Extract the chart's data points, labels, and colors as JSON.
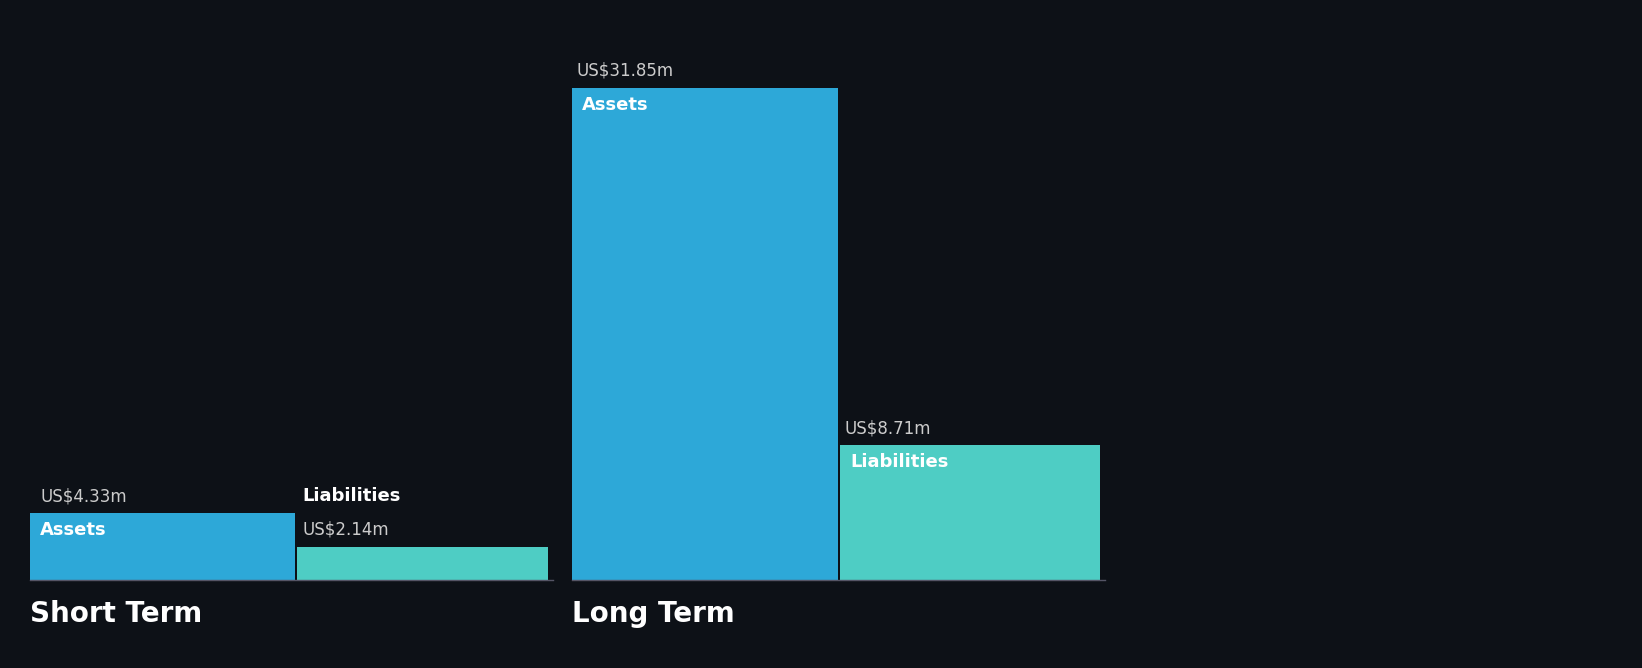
{
  "background_color": "#0d1117",
  "sections": [
    "Short Term",
    "Long Term"
  ],
  "assets": [
    4.33,
    31.85
  ],
  "liabilities": [
    2.14,
    8.71
  ],
  "asset_color": "#2da8d8",
  "liability_color": "#4ecdc4",
  "text_color": "#ffffff",
  "label_inside_color": "#ffffff",
  "liability_label_dark_color": "#1a2a3a",
  "value_label_color": "#cccccc",
  "section_title_fontsize": 20,
  "bar_label_fontsize": 13,
  "value_label_fontsize": 12,
  "y_max": 31.85,
  "baseline_color": "#3a3a4a"
}
